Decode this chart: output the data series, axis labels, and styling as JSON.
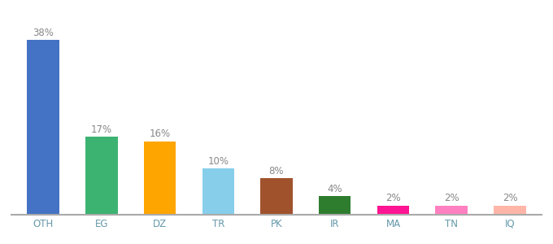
{
  "categories": [
    "OTH",
    "EG",
    "DZ",
    "TR",
    "PK",
    "IR",
    "MA",
    "TN",
    "IQ"
  ],
  "values": [
    38,
    17,
    16,
    10,
    8,
    4,
    2,
    2,
    2
  ],
  "colors": [
    "#4472C4",
    "#3CB371",
    "#FFA500",
    "#87CEEB",
    "#A0522D",
    "#2E7D2E",
    "#FF1493",
    "#FF80C0",
    "#FFB6A8"
  ],
  "labels": [
    "38%",
    "17%",
    "16%",
    "10%",
    "8%",
    "4%",
    "2%",
    "2%",
    "2%"
  ],
  "ylim": [
    0,
    43
  ],
  "background_color": "#ffffff",
  "label_color": "#888888",
  "label_fontsize": 8.5,
  "tick_fontsize": 8.5,
  "tick_color": "#6699AA",
  "bar_width": 0.55
}
